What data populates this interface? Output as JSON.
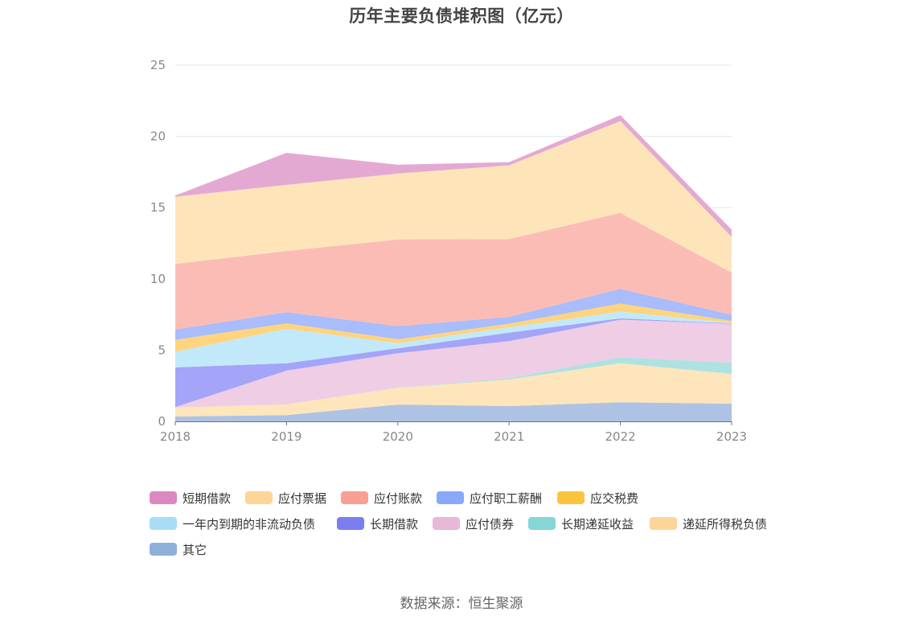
{
  "title": "历年主要负债堆积图（亿元）",
  "source": "数据来源：恒生聚源",
  "chart_data": {
    "type": "area",
    "stacked": true,
    "title": "历年主要负债堆积图（亿元）",
    "xlabel": "",
    "ylabel": "",
    "categories": [
      "2018",
      "2019",
      "2020",
      "2021",
      "2022",
      "2023"
    ],
    "ylim": [
      0,
      25
    ],
    "yticks": [
      0,
      5,
      10,
      15,
      20,
      25
    ],
    "grid": true,
    "legend_position": "bottom",
    "series": [
      {
        "name": "其它",
        "values": [
          0.34,
          0.44,
          1.18,
          1.07,
          1.34,
          1.24
        ],
        "color": "#8fafdb",
        "fill": "#aec2e3"
      },
      {
        "name": "递延所得税负债",
        "values": [
          0.64,
          0.75,
          1.17,
          1.87,
          2.74,
          2.09
        ],
        "color": "#fed598",
        "fill": "#fee5bb"
      },
      {
        "name": "长期递延收益",
        "values": [
          0.0,
          0.0,
          0.02,
          0.09,
          0.42,
          0.79
        ],
        "color": "#86d6d8",
        "fill": "#aee2e1"
      },
      {
        "name": "应付债券",
        "values": [
          0.02,
          2.37,
          2.41,
          2.6,
          2.64,
          2.72
        ],
        "color": "#e8b8d8",
        "fill": "#efcde5"
      },
      {
        "name": "长期借款",
        "values": [
          2.79,
          0.52,
          0.35,
          0.6,
          0.09,
          0.04
        ],
        "color": "#7a7ef0",
        "fill": "#a4a4f8"
      },
      {
        "name": "一年内到期的非流动负债",
        "values": [
          1.09,
          2.42,
          0.35,
          0.38,
          0.47,
          0.03
        ],
        "color": "#a8dcf8",
        "fill": "#c2e9fa"
      },
      {
        "name": "应交税费",
        "values": [
          0.84,
          0.38,
          0.28,
          0.25,
          0.57,
          0.14
        ],
        "color": "#fcc43d",
        "fill": "#fed47e"
      },
      {
        "name": "应付职工薪酬",
        "values": [
          0.72,
          0.79,
          0.92,
          0.47,
          1.03,
          0.43
        ],
        "color": "#89a7fb",
        "fill": "#a9bcfb"
      },
      {
        "name": "应付账款",
        "values": [
          4.61,
          4.29,
          6.09,
          5.46,
          5.33,
          2.96
        ],
        "color": "#f8a095",
        "fill": "#fbbcb6"
      },
      {
        "name": "应付票据",
        "values": [
          4.71,
          4.64,
          4.62,
          5.18,
          6.44,
          2.5
        ],
        "color": "#fdd596",
        "fill": "#fde5b9"
      },
      {
        "name": "短期借款",
        "values": [
          0.09,
          2.25,
          0.62,
          0.22,
          0.42,
          0.51
        ],
        "color": "#dd88c0",
        "fill": "#e4a9d3"
      }
    ]
  },
  "legend": [
    {
      "label": "短期借款",
      "color": "#dd88c0"
    },
    {
      "label": "应付票据",
      "color": "#fdd596"
    },
    {
      "label": "应付账款",
      "color": "#f8a095"
    },
    {
      "label": "应付职工薪酬",
      "color": "#89a7fb"
    },
    {
      "label": "应交税费",
      "color": "#fcc43d"
    },
    {
      "label": "一年内到期的非流动负债",
      "color": "#a8dcf8"
    },
    {
      "label": "长期借款",
      "color": "#7a7ef0"
    },
    {
      "label": "应付债券",
      "color": "#e8b8d8"
    },
    {
      "label": "长期递延收益",
      "color": "#86d6d8"
    },
    {
      "label": "递延所得税负债",
      "color": "#fed598"
    },
    {
      "label": "其它",
      "color": "#8fafdb"
    }
  ]
}
